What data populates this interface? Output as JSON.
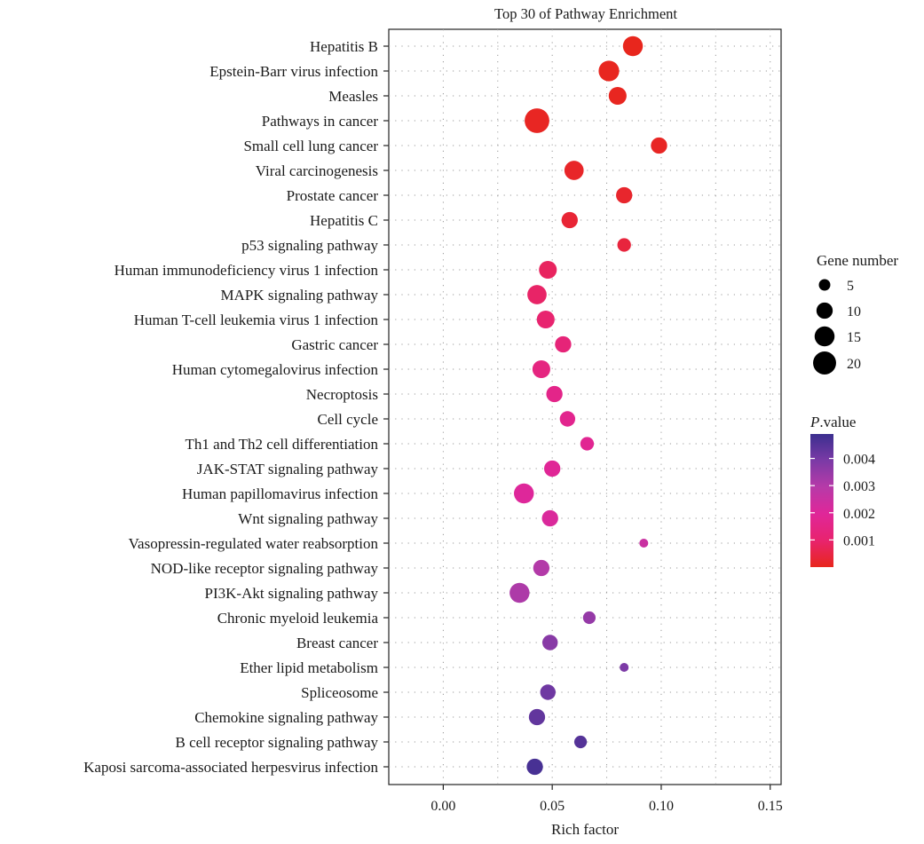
{
  "chart_data": {
    "type": "scatter",
    "title": "Top 30 of Pathway Enrichment",
    "xlabel": "Rich factor",
    "ylabel": "",
    "xlim": [
      -0.025,
      0.155
    ],
    "x_ticks": [
      "0.00",
      "0.05",
      "0.10",
      "0.15"
    ],
    "x_tick_values": [
      0.0,
      0.05,
      0.1,
      0.15
    ],
    "grid": true,
    "categories": [
      "Hepatitis B",
      "Epstein-Barr virus infection",
      "Measles",
      "Pathways in cancer",
      "Small cell lung cancer",
      "Viral carcinogenesis",
      "Prostate cancer",
      "Hepatitis C",
      "p53 signaling pathway",
      "Human immunodeficiency virus 1 infection",
      "MAPK signaling pathway",
      "Human T-cell leukemia virus 1 infection",
      "Gastric cancer",
      "Human cytomegalovirus infection",
      "Necroptosis",
      "Cell cycle",
      "Th1 and Th2 cell differentiation",
      "JAK-STAT signaling pathway",
      "Human papillomavirus infection",
      "Wnt signaling pathway",
      "Vasopressin-regulated water reabsorption",
      "NOD-like receptor signaling pathway",
      "PI3K-Akt signaling pathway",
      "Chronic myeloid leukemia",
      "Breast cancer",
      "Ether lipid metabolism",
      "Spliceosome",
      "Chemokine signaling pathway",
      "B cell receptor signaling pathway",
      "Kaposi sarcoma-associated herpesvirus infection"
    ],
    "points": [
      {
        "category": "Hepatitis B",
        "rich_factor": 0.087,
        "gene_number": 15,
        "pvalue": 1e-05
      },
      {
        "category": "Epstein-Barr virus infection",
        "rich_factor": 0.076,
        "gene_number": 16,
        "pvalue": 3e-05
      },
      {
        "category": "Measles",
        "rich_factor": 0.08,
        "gene_number": 12,
        "pvalue": 5e-05
      },
      {
        "category": "Pathways in cancer",
        "rich_factor": 0.043,
        "gene_number": 23,
        "pvalue": 8e-05
      },
      {
        "category": "Small cell lung cancer",
        "rich_factor": 0.099,
        "gene_number": 10,
        "pvalue": 0.0001
      },
      {
        "category": "Viral carcinogenesis",
        "rich_factor": 0.06,
        "gene_number": 14,
        "pvalue": 0.00015
      },
      {
        "category": "Prostate cancer",
        "rich_factor": 0.083,
        "gene_number": 10,
        "pvalue": 0.0002
      },
      {
        "category": "Hepatitis C",
        "rich_factor": 0.058,
        "gene_number": 10,
        "pvalue": 0.0003
      },
      {
        "category": "p53 signaling pathway",
        "rich_factor": 0.083,
        "gene_number": 7,
        "pvalue": 0.0004
      },
      {
        "category": "Human immunodeficiency virus 1 infection",
        "rich_factor": 0.048,
        "gene_number": 12,
        "pvalue": 0.0008
      },
      {
        "category": "MAPK signaling pathway",
        "rich_factor": 0.043,
        "gene_number": 14,
        "pvalue": 0.0009
      },
      {
        "category": "Human T-cell leukemia virus 1 infection",
        "rich_factor": 0.047,
        "gene_number": 12,
        "pvalue": 0.001
      },
      {
        "category": "Gastric cancer",
        "rich_factor": 0.055,
        "gene_number": 10,
        "pvalue": 0.0012
      },
      {
        "category": "Human cytomegalovirus infection",
        "rich_factor": 0.045,
        "gene_number": 12,
        "pvalue": 0.0014
      },
      {
        "category": "Necroptosis",
        "rich_factor": 0.051,
        "gene_number": 10,
        "pvalue": 0.0016
      },
      {
        "category": "Cell cycle",
        "rich_factor": 0.057,
        "gene_number": 9,
        "pvalue": 0.0017
      },
      {
        "category": "Th1 and Th2 cell differentiation",
        "rich_factor": 0.066,
        "gene_number": 7,
        "pvalue": 0.0018
      },
      {
        "category": "JAK-STAT signaling pathway",
        "rich_factor": 0.05,
        "gene_number": 10,
        "pvalue": 0.0019
      },
      {
        "category": "Human papillomavirus infection",
        "rich_factor": 0.037,
        "gene_number": 15,
        "pvalue": 0.002
      },
      {
        "category": "Wnt signaling pathway",
        "rich_factor": 0.049,
        "gene_number": 10,
        "pvalue": 0.0021
      },
      {
        "category": "Vasopressin-regulated water reabsorption",
        "rich_factor": 0.092,
        "gene_number": 3,
        "pvalue": 0.0025
      },
      {
        "category": "NOD-like receptor signaling pathway",
        "rich_factor": 0.045,
        "gene_number": 10,
        "pvalue": 0.003
      },
      {
        "category": "PI3K-Akt signaling pathway",
        "rich_factor": 0.035,
        "gene_number": 15,
        "pvalue": 0.0031
      },
      {
        "category": "Chronic myeloid leukemia",
        "rich_factor": 0.067,
        "gene_number": 6,
        "pvalue": 0.0035
      },
      {
        "category": "Breast cancer",
        "rich_factor": 0.049,
        "gene_number": 9,
        "pvalue": 0.0037
      },
      {
        "category": "Ether lipid metabolism",
        "rich_factor": 0.083,
        "gene_number": 3,
        "pvalue": 0.0039
      },
      {
        "category": "Spliceosome",
        "rich_factor": 0.048,
        "gene_number": 9,
        "pvalue": 0.0041
      },
      {
        "category": "Chemokine signaling pathway",
        "rich_factor": 0.043,
        "gene_number": 10,
        "pvalue": 0.0043
      },
      {
        "category": "B cell receptor signaling pathway",
        "rich_factor": 0.063,
        "gene_number": 6,
        "pvalue": 0.0045
      },
      {
        "category": "Kaposi sarcoma-associated herpesvirus infection",
        "rich_factor": 0.042,
        "gene_number": 10,
        "pvalue": 0.0047
      }
    ],
    "size_legend": {
      "title": "Gene number",
      "values": [
        5,
        10,
        15,
        20
      ],
      "labels": [
        "5",
        "10",
        "15",
        "20"
      ]
    },
    "color_legend": {
      "title_italic": "P",
      "title_rest": ".value",
      "range": [
        0.0,
        0.0049
      ],
      "ticks": [
        0.001,
        0.002,
        0.003,
        0.004
      ],
      "labels": [
        "0.001",
        "0.002",
        "0.003",
        "0.004"
      ],
      "colors_low_to_high": [
        "#e8261c",
        "#e8246e",
        "#e02699",
        "#b73aa8",
        "#7b3aa6",
        "#3b2f8f"
      ]
    },
    "legend_position": "right"
  }
}
